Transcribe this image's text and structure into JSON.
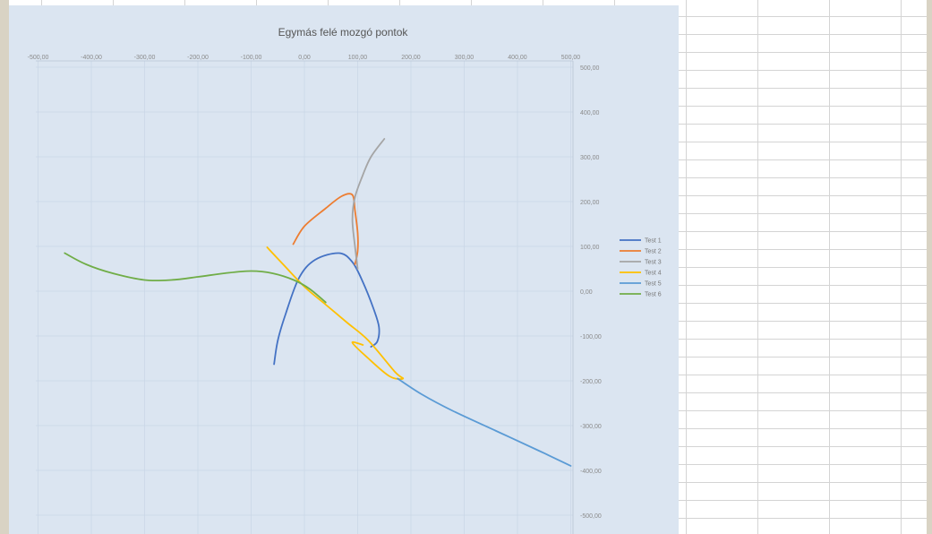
{
  "chart_data": {
    "type": "line",
    "title": "Egymás felé mozgó pontok",
    "xlabel": "",
    "ylabel": "",
    "xlim": [
      -500,
      500
    ],
    "ylim": [
      -500,
      500
    ],
    "x_ticks": [
      "-500,00",
      "-400,00",
      "-300,00",
      "-200,00",
      "-100,00",
      "0,00",
      "100,00",
      "200,00",
      "300,00",
      "400,00",
      "500,00"
    ],
    "y_ticks": [
      "500,00",
      "400,00",
      "300,00",
      "200,00",
      "100,00",
      "0,00",
      "-100,00",
      "-200,00",
      "-300,00",
      "-400,00",
      "-500,00"
    ],
    "grid": true,
    "legend_position": "right",
    "series": [
      {
        "name": "Test 1",
        "color": "#4472c4",
        "points": [
          [
            -57,
            -163
          ],
          [
            -50,
            -110
          ],
          [
            -35,
            -50
          ],
          [
            -10,
            30
          ],
          [
            20,
            70
          ],
          [
            65,
            85
          ],
          [
            90,
            65
          ],
          [
            110,
            20
          ],
          [
            130,
            -40
          ],
          [
            140,
            -80
          ],
          [
            137,
            -112
          ],
          [
            125,
            -124
          ]
        ]
      },
      {
        "name": "Test 2",
        "color": "#ed7d31",
        "points": [
          [
            -21,
            105
          ],
          [
            0,
            145
          ],
          [
            40,
            185
          ],
          [
            70,
            212
          ],
          [
            90,
            215
          ],
          [
            95,
            180
          ],
          [
            100,
            130
          ],
          [
            100,
            90
          ],
          [
            95,
            60
          ]
        ]
      },
      {
        "name": "Test 3",
        "color": "#a5a5a5",
        "points": [
          [
            150,
            340
          ],
          [
            125,
            300
          ],
          [
            110,
            260
          ],
          [
            95,
            210
          ],
          [
            90,
            160
          ],
          [
            95,
            100
          ],
          [
            100,
            50
          ]
        ]
      },
      {
        "name": "Test 4",
        "color": "#ffc000",
        "points": [
          [
            -70,
            98
          ],
          [
            -40,
            60
          ],
          [
            0,
            10
          ],
          [
            40,
            -30
          ],
          [
            80,
            -70
          ],
          [
            120,
            -110
          ],
          [
            170,
            -180
          ],
          [
            185,
            -195
          ],
          [
            160,
            -190
          ],
          [
            120,
            -150
          ],
          [
            90,
            -115
          ],
          [
            110,
            -120
          ]
        ]
      },
      {
        "name": "Test 5",
        "color": "#5b9bd5",
        "points": [
          [
            175,
            -195
          ],
          [
            220,
            -230
          ],
          [
            280,
            -268
          ],
          [
            360,
            -312
          ],
          [
            440,
            -356
          ],
          [
            500,
            -390
          ]
        ]
      },
      {
        "name": "Test 6",
        "color": "#70ad47",
        "points": [
          [
            -450,
            85
          ],
          [
            -410,
            60
          ],
          [
            -360,
            40
          ],
          [
            -300,
            25
          ],
          [
            -250,
            25
          ],
          [
            -200,
            32
          ],
          [
            -150,
            40
          ],
          [
            -100,
            45
          ],
          [
            -60,
            40
          ],
          [
            -20,
            25
          ],
          [
            10,
            5
          ],
          [
            40,
            -25
          ]
        ]
      }
    ]
  }
}
